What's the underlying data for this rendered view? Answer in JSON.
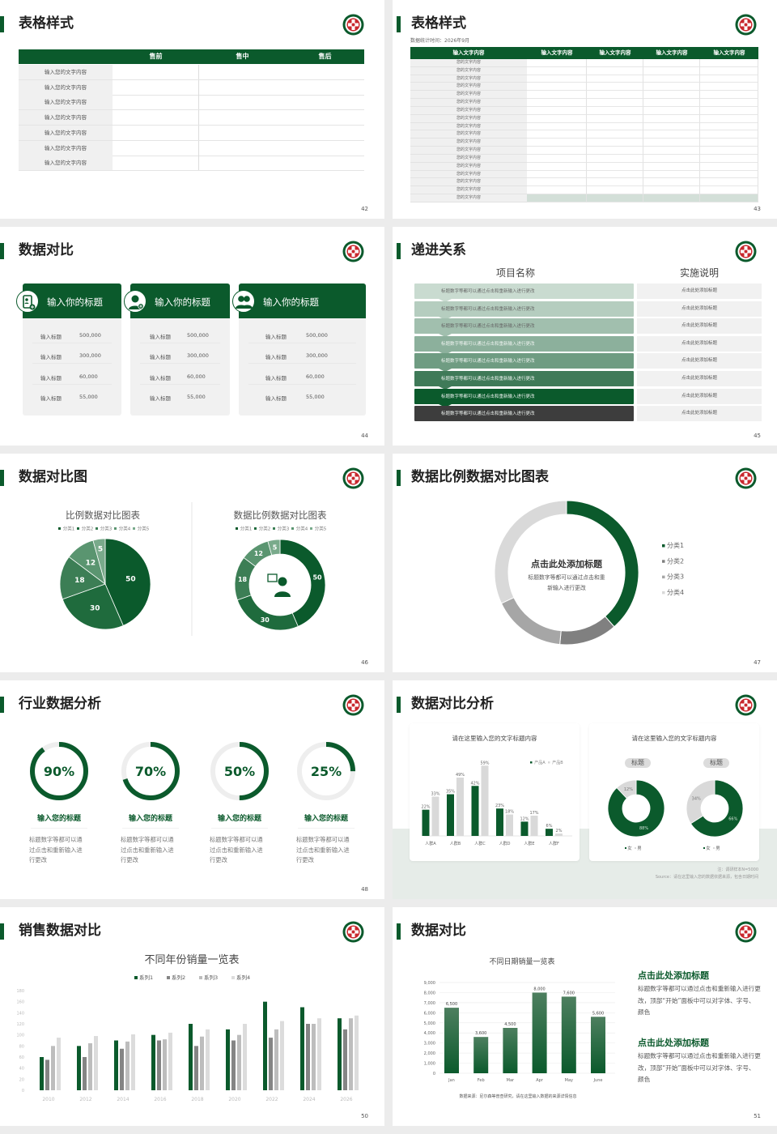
{
  "theme": {
    "accent": "#0b5a2c",
    "page_bg": "#ececec",
    "logo_icon": "hospital-emblem-icon"
  },
  "slides": [
    {
      "page": "42",
      "title": "表格样式",
      "table": {
        "headers": [
          "",
          "售前",
          "售中",
          "售后"
        ],
        "rows": [
          "输入您的文字内容",
          "输入您的文字内容",
          "输入您的文字内容",
          "输入您的文字内容",
          "输入您的文字内容",
          "输入您的文字内容",
          "输入您的文字内容"
        ]
      }
    },
    {
      "page": "43",
      "title": "表格样式",
      "subtitle": "数据统计时间：2026年9月",
      "table": {
        "headers": [
          "输入文字内容",
          "输入文字内容",
          "输入文字内容",
          "输入文字内容",
          "输入文字内容"
        ],
        "rows": [
          "您的文字内容",
          "您的文字内容",
          "您的文字内容",
          "您的文字内容",
          "您的文字内容",
          "您的文字内容",
          "您的文字内容",
          "您的文字内容",
          "您的文字内容",
          "您的文字内容",
          "您的文字内容",
          "您的文字内容",
          "您的文字内容",
          "您的文字内容",
          "您的文字内容",
          "您的文字内容",
          "您的文字内容",
          "您的文字内容"
        ]
      }
    },
    {
      "page": "44",
      "title": "数据对比",
      "cards": [
        {
          "title": "输入你的标题",
          "icon": "phone-user-add-icon",
          "rows": [
            {
              "label": "输入标题",
              "value": "500,000"
            },
            {
              "label": "输入标题",
              "value": "300,000"
            },
            {
              "label": "输入标题",
              "value": "60,000"
            },
            {
              "label": "输入标题",
              "value": "55,000"
            }
          ]
        },
        {
          "title": "输入你的标题",
          "icon": "user-add-icon",
          "rows": [
            {
              "label": "输入标题",
              "value": "500,000"
            },
            {
              "label": "输入标题",
              "value": "300,000"
            },
            {
              "label": "输入标题",
              "value": "60,000"
            },
            {
              "label": "输入标题",
              "value": "55,000"
            }
          ]
        },
        {
          "title": "输入你的标题",
          "icon": "user-group-icon",
          "rows": [
            {
              "label": "输入标题",
              "value": "500,000"
            },
            {
              "label": "输入标题",
              "value": "300,000"
            },
            {
              "label": "输入标题",
              "value": "60,000"
            },
            {
              "label": "输入标题",
              "value": "55,000"
            }
          ]
        }
      ]
    },
    {
      "page": "45",
      "title": "递进关系",
      "headers": [
        "项目名称",
        "实施说明"
      ],
      "rows": [
        {
          "name": "标题数字等都可以通过点击和重新输入进行更改",
          "desc": "点击此处添加标题"
        },
        {
          "name": "标题数字等都可以通过点击和重新输入进行更改",
          "desc": "点击此处添加标题"
        },
        {
          "name": "标题数字等都可以通过点击和重新输入进行更改",
          "desc": "点击此处添加标题"
        },
        {
          "name": "标题数字等都可以通过点击和重新输入进行更改",
          "desc": "点击此处添加标题"
        },
        {
          "name": "标题数字等都可以通过点击和重新输入进行更改",
          "desc": "点击此处添加标题"
        },
        {
          "name": "标题数字等都可以通过点击和重新输入进行更改",
          "desc": "点击此处添加标题"
        },
        {
          "name": "标题数字等都可以通过点击和重新输入进行更改",
          "desc": "点击此处添加标题"
        },
        {
          "name": "标题数字等都可以通过点击和重新输入进行更改",
          "desc": "点击此处添加标题"
        }
      ],
      "row_colors": [
        "#c9dbd0",
        "#b5cdbf",
        "#a1bfae",
        "#8cb09c",
        "#6f9c82",
        "#3f7a58",
        "#0b5a2c",
        "#3d3d3d"
      ]
    },
    {
      "page": "46",
      "title": "数据对比图"
    },
    {
      "page": "47",
      "title": "数据比例数据对比图表"
    },
    {
      "page": "48",
      "title": "行业数据分析",
      "items": [
        {
          "percent": 90,
          "label": "90%",
          "title": "输入您的标题",
          "text": "标题数字等都可以通过点击和重新输入进行更改"
        },
        {
          "percent": 70,
          "label": "70%",
          "title": "输入您的标题",
          "text": "标题数字等都可以通过点击和重新输入进行更改"
        },
        {
          "percent": 50,
          "label": "50%",
          "title": "输入您的标题",
          "text": "标题数字等都可以通过点击和重新输入进行更改"
        },
        {
          "percent": 25,
          "label": "25%",
          "title": "输入您的标题",
          "text": "标题数字等都可以通过点击和重新输入进行更改"
        }
      ]
    },
    {
      "page": "49",
      "title": "数据对比分析",
      "note": "注：调研样本N=5000",
      "source": "Source：请在这里输入您的数据依据来源，包含日期时间"
    },
    {
      "page": "50",
      "title": "销售数据对比"
    },
    {
      "page": "51",
      "title": "数据对比",
      "source": "数据来源：尼尔森等普查研究，请在这里输入数据的来源详情信息",
      "blocks": [
        {
          "heading": "点击此处添加标题",
          "text": "标题数字等都可以通过点击和重新输入进行更改，顶部“开始”面板中可以对字体、字号、颜色"
        },
        {
          "heading": "点击此处添加标题",
          "text": "标题数字等都可以通过点击和重新输入进行更改，顶部“开始”面板中可以对字体、字号、颜色"
        }
      ]
    }
  ],
  "chart_data": [
    {
      "type": "pie",
      "title": "比例数据对比图表",
      "categories": [
        "分类1",
        "分类2",
        "分类3",
        "分类4",
        "分类5"
      ],
      "values": [
        50,
        30,
        18,
        12,
        5
      ],
      "colors": [
        "#0b5a2c",
        "#1f6b3d",
        "#3c7e55",
        "#5a9570",
        "#79aa8b"
      ],
      "legend": "top"
    },
    {
      "type": "pie",
      "variant": "donut",
      "title": "数据比例数据对比图表",
      "categories": [
        "分类1",
        "分类2",
        "分类3",
        "分类4",
        "分类5"
      ],
      "values": [
        50,
        30,
        18,
        12,
        5
      ],
      "colors": [
        "#0b5a2c",
        "#1f6b3d",
        "#3c7e55",
        "#5a9570",
        "#79aa8b"
      ],
      "legend": "top",
      "center_icon": "customer-service-person-icon"
    },
    {
      "type": "pie",
      "variant": "donut",
      "categories": [
        "分类1",
        "分类2",
        "分类3",
        "分类4"
      ],
      "values": [
        38.5,
        13,
        16.5,
        32
      ],
      "colors": [
        "#0b5a2c",
        "#808080",
        "#a6a6a6",
        "#d9d9d9"
      ],
      "legend": "right",
      "center_title": "点击此处添加标题",
      "center_text": "标题数字等都可以通过点击和重新输入进行更改"
    },
    {
      "type": "bar",
      "title": "请在这里输入您的文字标题内容",
      "categories": [
        "人群A",
        "人群B",
        "人群C",
        "人群D",
        "人群E",
        "人群F"
      ],
      "series": [
        {
          "name": "产品A",
          "values": [
            22,
            35,
            42,
            23,
            12,
            6
          ],
          "color": "#0b5a2c"
        },
        {
          "name": "产品B",
          "values": [
            33,
            49,
            59,
            18,
            17,
            2
          ],
          "color": "#d9d9d9"
        }
      ],
      "unit": "%",
      "legend": "top-right"
    },
    {
      "type": "pie",
      "variant": "donut",
      "title": "请在这里输入您的文字标题内容",
      "charts": [
        {
          "label": "标题",
          "categories": [
            "女",
            "男"
          ],
          "values": [
            88,
            12
          ]
        },
        {
          "label": "标题",
          "categories": [
            "女",
            "男"
          ],
          "values": [
            66,
            34
          ]
        }
      ],
      "colors": [
        "#0b5a2c",
        "#d9d9d9"
      ],
      "unit": "%"
    },
    {
      "type": "bar",
      "title": "不同年份销量一览表",
      "categories": [
        "2010",
        "2012",
        "2014",
        "2016",
        "2018",
        "2020",
        "2022",
        "2024",
        "2026"
      ],
      "series": [
        {
          "name": "系列1",
          "values": [
            60,
            80,
            90,
            100,
            120,
            110,
            160,
            150,
            130
          ],
          "color": "#0b5a2c"
        },
        {
          "name": "系列2",
          "values": [
            55,
            60,
            75,
            90,
            80,
            90,
            95,
            120,
            110
          ],
          "color": "#858585"
        },
        {
          "name": "系列3",
          "values": [
            80,
            85,
            88,
            92,
            97,
            100,
            110,
            120,
            130
          ],
          "color": "#bdbdbd"
        },
        {
          "name": "系列4",
          "values": [
            95,
            98,
            101,
            104,
            110,
            120,
            125,
            130,
            135
          ],
          "color": "#dcdcdc"
        }
      ],
      "yticks": [
        "0",
        "20",
        "40",
        "60",
        "80",
        "100",
        "120",
        "140",
        "160",
        "180"
      ],
      "ylim": [
        0,
        180
      ],
      "legend": "top"
    },
    {
      "type": "bar",
      "title": "不同日期销量一览表",
      "categories": [
        "Jan",
        "Feb",
        "Mar",
        "Apr",
        "May",
        "June"
      ],
      "values": [
        6500,
        3600,
        4500,
        8000,
        7600,
        5600
      ],
      "value_labels": [
        "6,500",
        "3,600",
        "4,500",
        "8,000",
        "7,600",
        "5,600"
      ],
      "yticks": [
        "0",
        "1,000",
        "2,000",
        "3,000",
        "4,000",
        "5,000",
        "6,000",
        "7,000",
        "8,000",
        "9,000"
      ],
      "ylim": [
        0,
        9000
      ],
      "grid": true
    }
  ]
}
